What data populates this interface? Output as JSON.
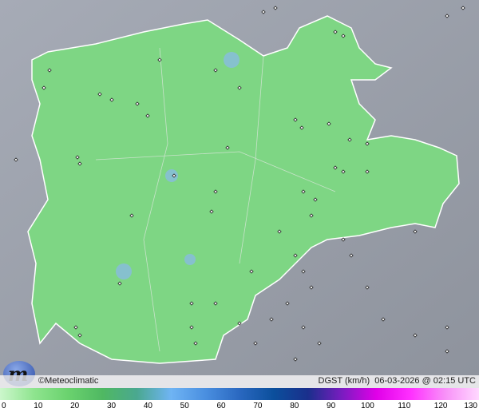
{
  "map": {
    "variable_label": "DGST (km/h)",
    "timestamp": "06-03-2026 @ 02:15 UTC",
    "credit": "©Meteoclimatic",
    "logo_text": "m",
    "colors": {
      "background": "#9ea3ad",
      "region": "#7ed684",
      "border": "#ffffff"
    }
  },
  "legend": {
    "ticks": [
      "0",
      "10",
      "20",
      "30",
      "40",
      "50",
      "60",
      "70",
      "80",
      "90",
      "100",
      "110",
      "120",
      "130"
    ],
    "colors": [
      "#ccf7cc",
      "#8ee48e",
      "#6ad26e",
      "#4fb862",
      "#4aa890",
      "#6fb4f4",
      "#4a8fe0",
      "#2a68c0",
      "#0b4f9c",
      "#1a2f8c",
      "#7a1cc0",
      "#e000e8",
      "#ff30ff",
      "#f890f8",
      "#ffd8ff"
    ]
  }
}
